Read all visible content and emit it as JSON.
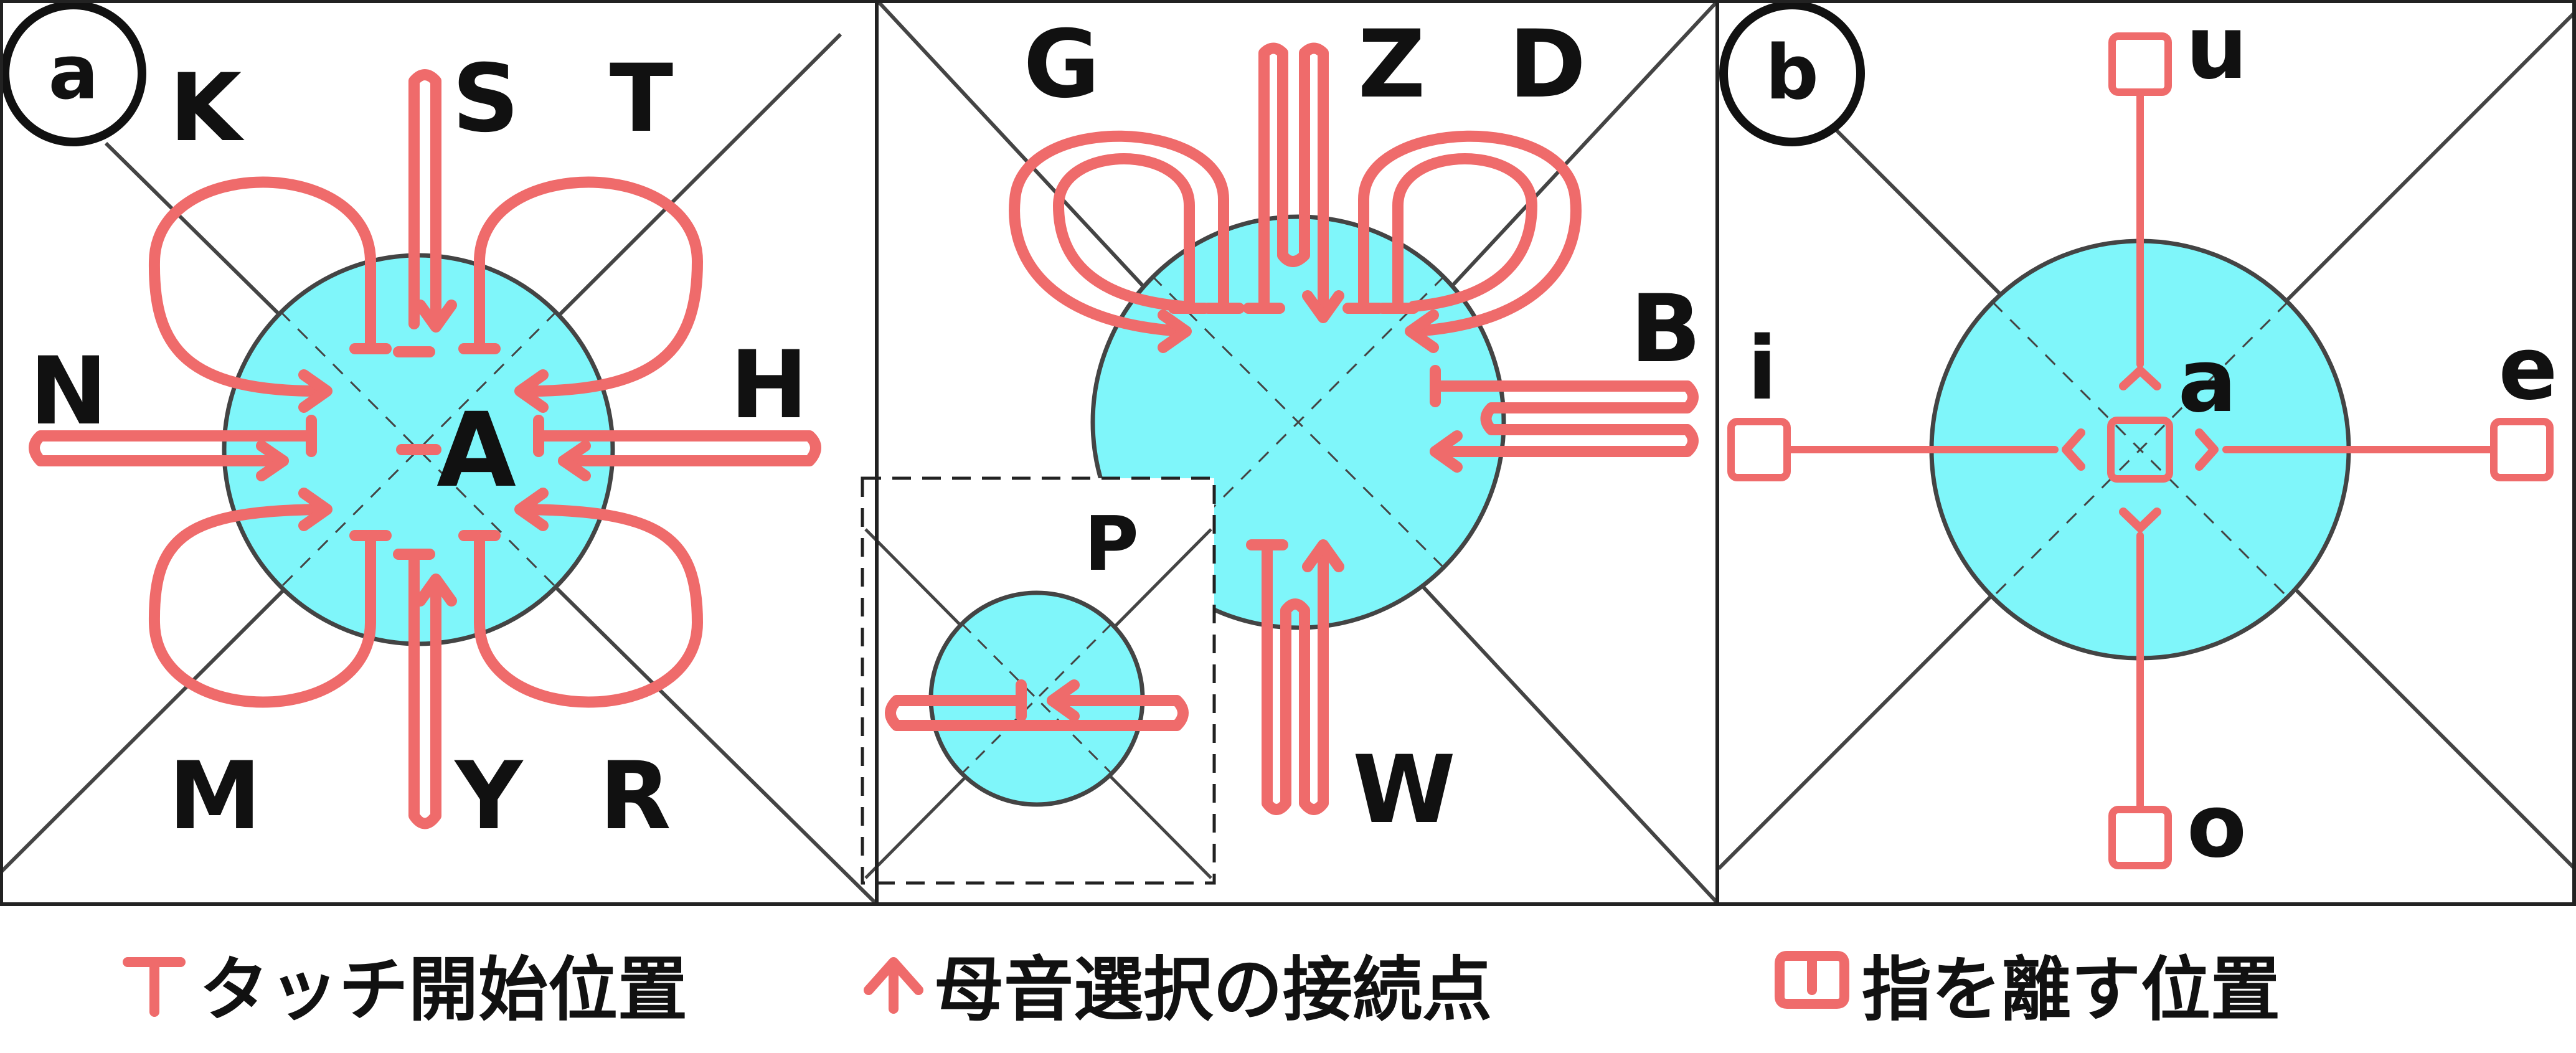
{
  "colors": {
    "stroke": "#ef6b6b",
    "circle_fill": "#7ff6fa",
    "circle_stroke": "#444444",
    "frame": "#222222"
  },
  "panel_a": {
    "badge": "a",
    "center": "A",
    "labels": {
      "K": "K",
      "S": "S",
      "T": "T",
      "N": "N",
      "H": "H",
      "M": "M",
      "Y": "Y",
      "R": "R"
    }
  },
  "panel_mid": {
    "labels": {
      "G": "G",
      "Z": "Z",
      "D": "D",
      "B": "B",
      "W": "W"
    },
    "inset_label": "P"
  },
  "panel_b": {
    "badge": "b",
    "center": "a",
    "labels": {
      "u": "u",
      "i": "i",
      "e": "e",
      "o": "o"
    }
  },
  "legend": {
    "touch_start": "タッチ開始位置",
    "vowel_junction": "母音選択の接続点",
    "finger_release": "指を離す位置"
  }
}
